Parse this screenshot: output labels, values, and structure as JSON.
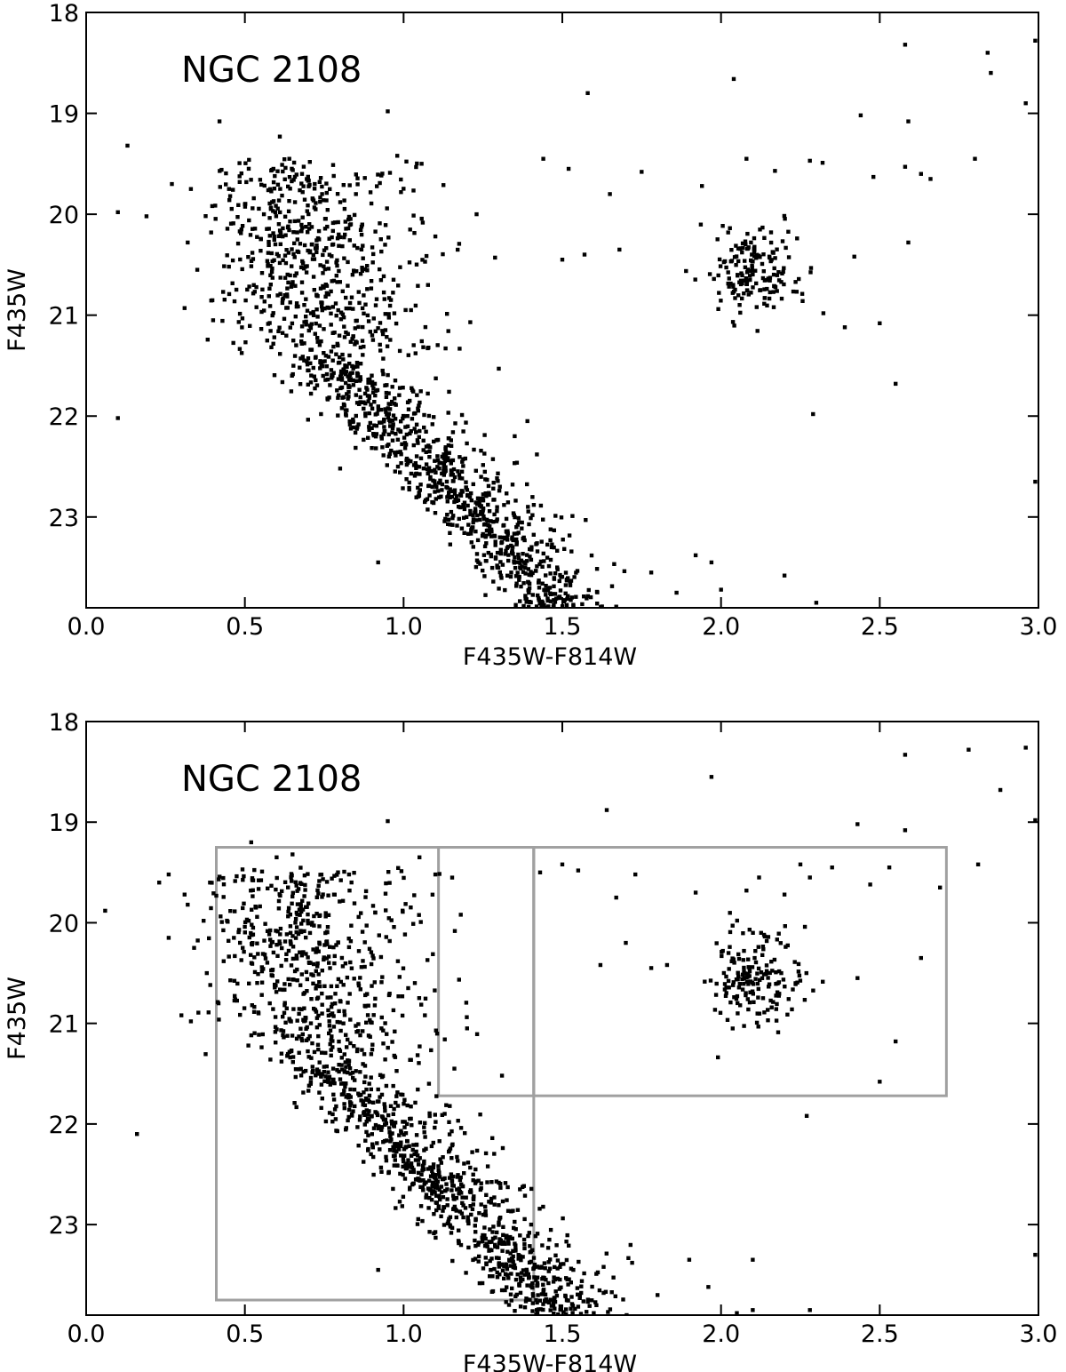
{
  "chart_data": [
    {
      "type": "scatter",
      "title": "",
      "annotation": "NGC 2108",
      "xlabel": "F435W-F814W",
      "ylabel": "F435W",
      "xlim": [
        0.0,
        3.0
      ],
      "ylim": [
        23.9,
        18.0
      ],
      "y_inverted": true,
      "xticks": [
        "0.0",
        "0.5",
        "1.0",
        "1.5",
        "2.0",
        "2.5",
        "3.0"
      ],
      "yticks": [
        "18",
        "19",
        "20",
        "21",
        "22",
        "23"
      ],
      "grid": false,
      "marker_color": "#000000",
      "series": [
        {
          "points": [
            [
              0.1,
              19.98
            ],
            [
              0.13,
              19.32
            ],
            [
              0.19,
              20.02
            ],
            [
              0.27,
              19.7
            ],
            [
              0.33,
              19.75
            ],
            [
              0.32,
              20.28
            ],
            [
              0.35,
              20.55
            ],
            [
              0.31,
              20.93
            ],
            [
              0.4,
              21.05
            ],
            [
              0.42,
              19.08
            ],
            [
              0.45,
              19.75
            ],
            [
              0.5,
              19.9
            ],
            [
              0.56,
              20.0
            ],
            [
              0.59,
              19.55
            ],
            [
              0.61,
              19.23
            ],
            [
              0.64,
              19.45
            ],
            [
              0.68,
              19.6
            ],
            [
              0.72,
              19.7
            ],
            [
              0.78,
              19.62
            ],
            [
              0.85,
              19.8
            ],
            [
              0.95,
              18.98
            ],
            [
              0.98,
              19.42
            ],
            [
              1.1,
              20.22
            ],
            [
              1.23,
              20.0
            ],
            [
              1.58,
              18.8
            ],
            [
              1.44,
              19.45
            ],
            [
              1.52,
              19.55
            ],
            [
              1.65,
              19.8
            ],
            [
              1.68,
              20.35
            ],
            [
              1.75,
              19.58
            ],
            [
              1.57,
              20.4
            ],
            [
              1.5,
              20.45
            ],
            [
              0.1,
              22.02
            ],
            [
              0.8,
              22.52
            ],
            [
              0.92,
              23.45
            ],
            [
              1.21,
              21.07
            ],
            [
              1.3,
              21.53
            ],
            [
              1.35,
              22.2
            ],
            [
              1.39,
              22.05
            ],
            [
              1.42,
              22.38
            ],
            [
              1.78,
              23.55
            ],
            [
              1.86,
              23.75
            ],
            [
              1.92,
              23.38
            ],
            [
              1.97,
              23.45
            ],
            [
              2.0,
              23.72
            ],
            [
              2.2,
              23.58
            ],
            [
              2.29,
              21.98
            ],
            [
              2.3,
              23.85
            ],
            [
              2.04,
              18.66
            ],
            [
              2.08,
              19.45
            ],
            [
              2.17,
              19.57
            ],
            [
              2.28,
              19.47
            ],
            [
              2.32,
              19.49
            ],
            [
              2.42,
              20.42
            ],
            [
              2.44,
              19.02
            ],
            [
              2.48,
              19.63
            ],
            [
              2.5,
              21.08
            ],
            [
              2.55,
              21.68
            ],
            [
              2.58,
              19.53
            ],
            [
              2.59,
              19.08
            ],
            [
              2.59,
              20.28
            ],
            [
              2.63,
              19.6
            ],
            [
              2.66,
              19.65
            ],
            [
              2.58,
              18.32
            ],
            [
              2.8,
              19.45
            ],
            [
              2.84,
              18.4
            ],
            [
              2.85,
              18.6
            ],
            [
              2.96,
              18.9
            ],
            [
              2.99,
              18.28
            ],
            [
              2.99,
              22.65
            ],
            [
              1.94,
              19.72
            ],
            [
              2.39,
              21.12
            ]
          ]
        }
      ]
    },
    {
      "type": "scatter",
      "title": "",
      "annotation": "NGC 2108",
      "xlabel": "F435W-F814W",
      "ylabel": "F435W",
      "xlim": [
        0.0,
        3.0
      ],
      "ylim": [
        23.9,
        18.0
      ],
      "y_inverted": true,
      "xticks": [
        "0.0",
        "0.5",
        "1.0",
        "1.5",
        "2.0",
        "2.5",
        "3.0"
      ],
      "yticks": [
        "18",
        "19",
        "20",
        "21",
        "22",
        "23"
      ],
      "grid": false,
      "marker_color": "#000000",
      "selection_box_color": "#a0a0a0",
      "selection_boxes": [
        {
          "x": [
            0.41,
            1.41
          ],
          "y": [
            19.25,
            23.75
          ]
        },
        {
          "x": [
            1.11,
            1.41
          ],
          "y": [
            19.25,
            21.72
          ]
        },
        {
          "x": [
            1.41,
            2.71
          ],
          "y": [
            19.25,
            21.72
          ]
        }
      ],
      "series": [
        {
          "points": [
            [
              0.06,
              19.88
            ],
            [
              0.16,
              22.1
            ],
            [
              0.23,
              19.6
            ],
            [
              0.26,
              19.52
            ],
            [
              0.26,
              20.15
            ],
            [
              0.3,
              20.92
            ],
            [
              0.31,
              19.72
            ],
            [
              0.32,
              19.82
            ],
            [
              0.33,
              20.98
            ],
            [
              0.34,
              20.25
            ],
            [
              0.37,
              19.98
            ],
            [
              0.38,
              20.5
            ],
            [
              0.39,
              19.6
            ],
            [
              0.52,
              19.2
            ],
            [
              0.6,
              19.35
            ],
            [
              0.65,
              19.32
            ],
            [
              0.95,
              18.99
            ],
            [
              1.05,
              19.35
            ],
            [
              1.1,
              19.52
            ],
            [
              1.18,
              19.92
            ],
            [
              1.2,
              21.05
            ],
            [
              1.31,
              21.52
            ],
            [
              1.16,
              21.45
            ],
            [
              1.08,
              21.6
            ],
            [
              0.92,
              23.45
            ],
            [
              1.43,
              19.5
            ],
            [
              1.5,
              19.42
            ],
            [
              1.55,
              19.48
            ],
            [
              1.62,
              20.42
            ],
            [
              1.64,
              18.88
            ],
            [
              1.67,
              19.75
            ],
            [
              1.7,
              20.2
            ],
            [
              1.73,
              19.52
            ],
            [
              1.78,
              20.45
            ],
            [
              1.83,
              20.42
            ],
            [
              1.92,
              19.7
            ],
            [
              1.97,
              18.55
            ],
            [
              2.08,
              19.68
            ],
            [
              2.1,
              23.35
            ],
            [
              2.12,
              19.55
            ],
            [
              2.2,
              19.72
            ],
            [
              2.25,
              19.42
            ],
            [
              2.28,
              19.55
            ],
            [
              2.35,
              19.45
            ],
            [
              2.43,
              19.02
            ],
            [
              2.47,
              19.62
            ],
            [
              2.53,
              19.45
            ],
            [
              2.58,
              19.08
            ],
            [
              2.58,
              18.33
            ],
            [
              2.63,
              20.35
            ],
            [
              2.69,
              19.65
            ],
            [
              2.55,
              21.18
            ],
            [
              2.5,
              21.58
            ],
            [
              2.27,
              21.92
            ],
            [
              2.28,
              23.85
            ],
            [
              2.1,
              23.85
            ],
            [
              2.05,
              23.88
            ],
            [
              1.96,
              23.62
            ],
            [
              1.9,
              23.35
            ],
            [
              2.81,
              19.42
            ],
            [
              2.78,
              18.28
            ],
            [
              2.88,
              18.68
            ],
            [
              2.96,
              18.26
            ],
            [
              2.99,
              18.98
            ],
            [
              2.99,
              23.3
            ],
            [
              1.63,
              23.42
            ],
            [
              1.72,
              23.38
            ],
            [
              1.8,
              23.7
            ],
            [
              2.43,
              20.55
            ]
          ]
        }
      ]
    }
  ]
}
